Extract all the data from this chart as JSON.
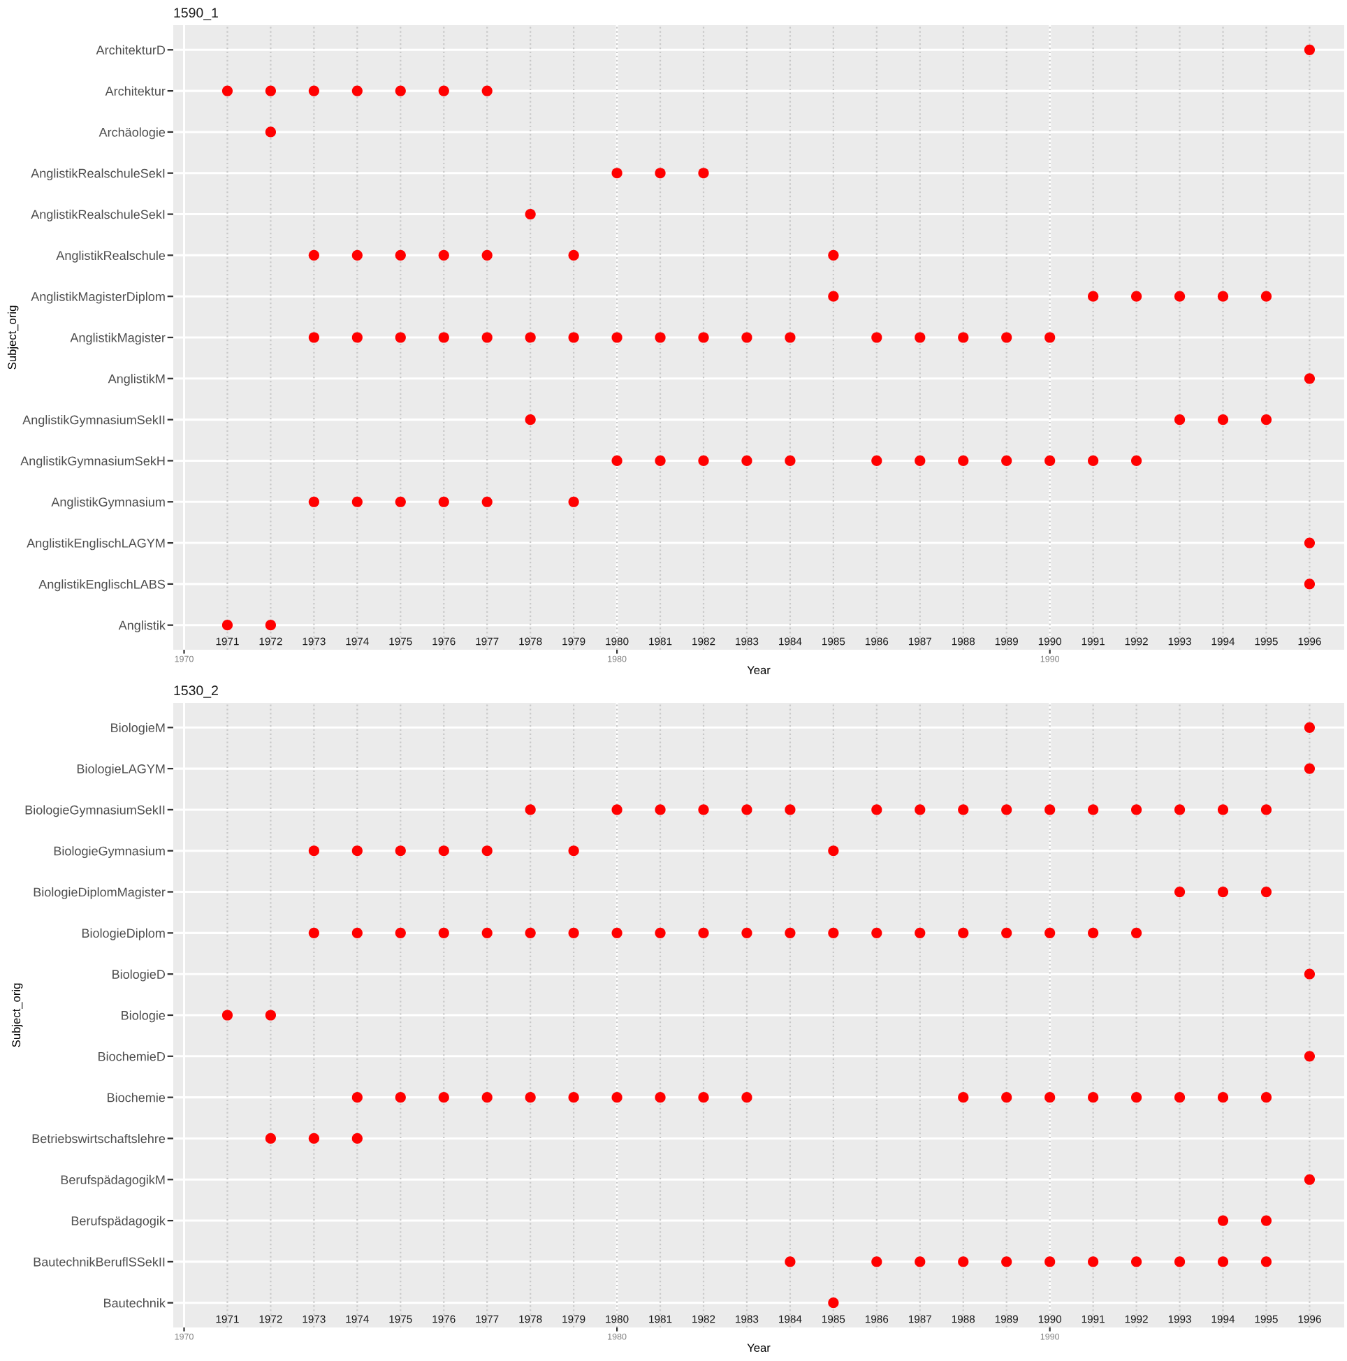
{
  "chart_data": [
    {
      "type": "scatter",
      "title": "1590_1",
      "xlabel": "Year",
      "ylabel": "Subject_orig",
      "xlim": [
        1969.75,
        1996.8
      ],
      "xticks": [
        1970,
        1980,
        1990
      ],
      "grid": true,
      "marker": "circle",
      "orientation": "horizontal",
      "legend": false,
      "categories": [
        "ArchitekturD",
        "Architektur",
        "Archäologie",
        "AnglistikRealschuleSekI",
        "AnglistikRealschuleSekI",
        "AnglistikRealschule",
        "AnglistikMagisterDiplom",
        "AnglistikMagister",
        "AnglistikM",
        "AnglistikGymnasiumSekII",
        "AnglistikGymnasiumSekH",
        "AnglistikGymnasium",
        "AnglistikEnglischLAGYM",
        "AnglistikEnglischLABS",
        "Anglistik"
      ],
      "series": [
        {
          "color": "#ff0000",
          "values": [
            null,
            1971,
            null,
            null,
            null,
            null,
            null,
            null,
            null,
            null,
            null,
            null,
            null,
            null,
            1971
          ]
        },
        {
          "color": "#ff0000",
          "values": [
            null,
            1972,
            1972,
            null,
            null,
            null,
            null,
            null,
            null,
            null,
            null,
            null,
            null,
            null,
            1972
          ]
        },
        {
          "color": "#ff0000",
          "values": [
            null,
            1973,
            null,
            null,
            null,
            1973,
            null,
            1973,
            null,
            null,
            null,
            1973,
            null,
            null,
            null
          ]
        },
        {
          "color": "#ff0000",
          "values": [
            null,
            1974,
            null,
            null,
            null,
            1974,
            null,
            1974,
            null,
            null,
            null,
            1974,
            null,
            null,
            null
          ]
        },
        {
          "color": "#ff0000",
          "values": [
            null,
            1975,
            null,
            null,
            null,
            1975,
            null,
            1975,
            null,
            null,
            null,
            1975,
            null,
            null,
            null
          ]
        },
        {
          "color": "#ff0000",
          "values": [
            null,
            1976,
            null,
            null,
            null,
            1976,
            null,
            1976,
            null,
            null,
            null,
            1976,
            null,
            null,
            null
          ]
        },
        {
          "color": "#ff0000",
          "values": [
            null,
            1977,
            null,
            null,
            null,
            1977,
            null,
            1977,
            null,
            null,
            null,
            1977,
            null,
            null,
            null
          ]
        },
        {
          "color": "#ff0000",
          "values": [
            null,
            null,
            null,
            null,
            1978,
            null,
            null,
            1978,
            null,
            1978,
            null,
            null,
            null,
            null,
            null
          ]
        },
        {
          "color": "#ff0000",
          "values": [
            null,
            null,
            null,
            null,
            null,
            1979,
            null,
            1979,
            null,
            null,
            null,
            1979,
            null,
            null,
            null
          ]
        },
        {
          "color": "#ff0000",
          "values": [
            null,
            null,
            null,
            1980,
            null,
            null,
            null,
            1980,
            null,
            null,
            1980,
            null,
            null,
            null,
            null
          ]
        },
        {
          "color": "#ff0000",
          "values": [
            null,
            null,
            null,
            1981,
            null,
            null,
            null,
            1981,
            null,
            null,
            1981,
            null,
            null,
            null,
            null
          ]
        },
        {
          "color": "#ff0000",
          "values": [
            null,
            null,
            null,
            1982,
            null,
            null,
            null,
            1982,
            null,
            null,
            1982,
            null,
            null,
            null,
            null
          ]
        },
        {
          "color": "#ff0000",
          "values": [
            null,
            null,
            null,
            null,
            null,
            null,
            null,
            1983,
            null,
            null,
            1983,
            null,
            null,
            null,
            null
          ]
        },
        {
          "color": "#ff0000",
          "values": [
            null,
            null,
            null,
            null,
            null,
            null,
            null,
            1984,
            null,
            null,
            1984,
            null,
            null,
            null,
            null
          ]
        },
        {
          "color": "#ff0000",
          "values": [
            null,
            null,
            null,
            null,
            null,
            1985,
            1985,
            null,
            null,
            null,
            null,
            null,
            null,
            null,
            null
          ]
        },
        {
          "color": "#ff0000",
          "values": [
            null,
            null,
            null,
            null,
            null,
            null,
            null,
            1986,
            null,
            null,
            1986,
            null,
            null,
            null,
            null
          ]
        },
        {
          "color": "#ff0000",
          "values": [
            null,
            null,
            null,
            null,
            null,
            null,
            null,
            1987,
            null,
            null,
            1987,
            null,
            null,
            null,
            null
          ]
        },
        {
          "color": "#ff0000",
          "values": [
            null,
            null,
            null,
            null,
            null,
            null,
            null,
            1988,
            null,
            null,
            1988,
            null,
            null,
            null,
            null
          ]
        },
        {
          "color": "#ff0000",
          "values": [
            null,
            null,
            null,
            null,
            null,
            null,
            null,
            1989,
            null,
            null,
            1989,
            null,
            null,
            null,
            null
          ]
        },
        {
          "color": "#ff0000",
          "values": [
            null,
            null,
            null,
            null,
            null,
            null,
            null,
            1990,
            null,
            null,
            1990,
            null,
            null,
            null,
            null
          ]
        },
        {
          "color": "#ff0000",
          "values": [
            null,
            null,
            null,
            null,
            null,
            null,
            1991,
            null,
            null,
            null,
            1991,
            null,
            null,
            null,
            null
          ]
        },
        {
          "color": "#ff0000",
          "values": [
            null,
            null,
            null,
            null,
            null,
            null,
            1992,
            null,
            null,
            null,
            1992,
            null,
            null,
            null,
            null
          ]
        },
        {
          "color": "#ff0000",
          "values": [
            null,
            null,
            null,
            null,
            null,
            null,
            1993,
            null,
            null,
            1993,
            null,
            null,
            null,
            null,
            null
          ]
        },
        {
          "color": "#ff0000",
          "values": [
            null,
            null,
            null,
            null,
            null,
            null,
            1994,
            null,
            null,
            1994,
            null,
            null,
            null,
            null,
            null
          ]
        },
        {
          "color": "#ff0000",
          "values": [
            null,
            null,
            null,
            null,
            null,
            null,
            1995,
            null,
            null,
            1995,
            null,
            null,
            null,
            null,
            null
          ]
        },
        {
          "color": "#ff0000",
          "values": [
            1996,
            null,
            null,
            null,
            null,
            null,
            null,
            null,
            1996,
            null,
            null,
            null,
            1996,
            1996,
            null
          ]
        }
      ],
      "ref_lines": [
        {
          "axis": "x",
          "value": 1971,
          "label": "1971",
          "line_style": "dotted",
          "color": "#c8c8c8"
        },
        {
          "axis": "x",
          "value": 1972,
          "label": "1972",
          "line_style": "dotted",
          "color": "#c8c8c8"
        },
        {
          "axis": "x",
          "value": 1973,
          "label": "1973",
          "line_style": "dotted",
          "color": "#c8c8c8"
        },
        {
          "axis": "x",
          "value": 1974,
          "label": "1974",
          "line_style": "dotted",
          "color": "#c8c8c8"
        },
        {
          "axis": "x",
          "value": 1975,
          "label": "1975",
          "line_style": "dotted",
          "color": "#c8c8c8"
        },
        {
          "axis": "x",
          "value": 1976,
          "label": "1976",
          "line_style": "dotted",
          "color": "#c8c8c8"
        },
        {
          "axis": "x",
          "value": 1977,
          "label": "1977",
          "line_style": "dotted",
          "color": "#c8c8c8"
        },
        {
          "axis": "x",
          "value": 1978,
          "label": "1978",
          "line_style": "dotted",
          "color": "#c8c8c8"
        },
        {
          "axis": "x",
          "value": 1979,
          "label": "1979",
          "line_style": "dotted",
          "color": "#c8c8c8"
        },
        {
          "axis": "x",
          "value": 1980,
          "label": "1980",
          "line_style": "dotted",
          "color": "#c8c8c8"
        },
        {
          "axis": "x",
          "value": 1981,
          "label": "1981",
          "line_style": "dotted",
          "color": "#c8c8c8"
        },
        {
          "axis": "x",
          "value": 1982,
          "label": "1982",
          "line_style": "dotted",
          "color": "#c8c8c8"
        },
        {
          "axis": "x",
          "value": 1983,
          "label": "1983",
          "line_style": "dotted",
          "color": "#c8c8c8"
        },
        {
          "axis": "x",
          "value": 1984,
          "label": "1984",
          "line_style": "dotted",
          "color": "#c8c8c8"
        },
        {
          "axis": "x",
          "value": 1985,
          "label": "1985",
          "line_style": "dotted",
          "color": "#c8c8c8"
        },
        {
          "axis": "x",
          "value": 1986,
          "label": "1986",
          "line_style": "dotted",
          "color": "#c8c8c8"
        },
        {
          "axis": "x",
          "value": 1987,
          "label": "1987",
          "line_style": "dotted",
          "color": "#c8c8c8"
        },
        {
          "axis": "x",
          "value": 1988,
          "label": "1988",
          "line_style": "dotted",
          "color": "#c8c8c8"
        },
        {
          "axis": "x",
          "value": 1989,
          "label": "1989",
          "line_style": "dotted",
          "color": "#c8c8c8"
        },
        {
          "axis": "x",
          "value": 1990,
          "label": "1990",
          "line_style": "dotted",
          "color": "#c8c8c8"
        },
        {
          "axis": "x",
          "value": 1991,
          "label": "1991",
          "line_style": "dotted",
          "color": "#c8c8c8"
        },
        {
          "axis": "x",
          "value": 1992,
          "label": "1992",
          "line_style": "dotted",
          "color": "#c8c8c8"
        },
        {
          "axis": "x",
          "value": 1993,
          "label": "1993",
          "line_style": "dotted",
          "color": "#c8c8c8"
        },
        {
          "axis": "x",
          "value": 1994,
          "label": "1994",
          "line_style": "dotted",
          "color": "#c8c8c8"
        },
        {
          "axis": "x",
          "value": 1995,
          "label": "1995",
          "line_style": "dotted",
          "color": "#c8c8c8"
        },
        {
          "axis": "x",
          "value": 1996,
          "label": "1996",
          "line_style": "dotted",
          "color": "#c8c8c8"
        }
      ]
    },
    {
      "type": "scatter",
      "title": "1530_2",
      "xlabel": "Year",
      "ylabel": "Subject_orig",
      "xlim": [
        1969.75,
        1996.8
      ],
      "xticks": [
        1970,
        1980,
        1990
      ],
      "grid": true,
      "marker": "circle",
      "orientation": "horizontal",
      "legend": false,
      "categories": [
        "BiologieM",
        "BiologieLAGYM",
        "BiologieGymnasiumSekII",
        "BiologieGymnasium",
        "BiologieDiplomMagister",
        "BiologieDiplom",
        "BiologieD",
        "Biologie",
        "BiochemieD",
        "Biochemie",
        "Betriebswirtschaftslehre",
        "BerufspädagogikM",
        "Berufspädagogik",
        "BautechnikBeruflSSekII",
        "Bautechnik"
      ],
      "series": [
        {
          "color": "#ff0000",
          "values": [
            null,
            null,
            null,
            null,
            null,
            null,
            null,
            1971,
            null,
            null,
            null,
            null,
            null,
            null,
            null
          ]
        },
        {
          "color": "#ff0000",
          "values": [
            null,
            null,
            null,
            null,
            null,
            null,
            null,
            1972,
            null,
            null,
            1972,
            null,
            null,
            null,
            null
          ]
        },
        {
          "color": "#ff0000",
          "values": [
            null,
            null,
            null,
            1973,
            null,
            1973,
            null,
            null,
            null,
            null,
            1973,
            null,
            null,
            null,
            null
          ]
        },
        {
          "color": "#ff0000",
          "values": [
            null,
            null,
            null,
            1974,
            null,
            1974,
            null,
            null,
            null,
            1974,
            1974,
            null,
            null,
            null,
            null
          ]
        },
        {
          "color": "#ff0000",
          "values": [
            null,
            null,
            null,
            1975,
            null,
            1975,
            null,
            null,
            null,
            1975,
            null,
            null,
            null,
            null,
            null
          ]
        },
        {
          "color": "#ff0000",
          "values": [
            null,
            null,
            null,
            1976,
            null,
            1976,
            null,
            null,
            null,
            1976,
            null,
            null,
            null,
            null,
            null
          ]
        },
        {
          "color": "#ff0000",
          "values": [
            null,
            null,
            null,
            1977,
            null,
            1977,
            null,
            null,
            null,
            1977,
            null,
            null,
            null,
            null,
            null
          ]
        },
        {
          "color": "#ff0000",
          "values": [
            null,
            null,
            1978,
            null,
            null,
            1978,
            null,
            null,
            null,
            1978,
            null,
            null,
            null,
            null,
            null
          ]
        },
        {
          "color": "#ff0000",
          "values": [
            null,
            null,
            null,
            1979,
            null,
            1979,
            null,
            null,
            null,
            1979,
            null,
            null,
            null,
            null,
            null
          ]
        },
        {
          "color": "#ff0000",
          "values": [
            null,
            null,
            1980,
            null,
            null,
            1980,
            null,
            null,
            null,
            1980,
            null,
            null,
            null,
            null,
            null
          ]
        },
        {
          "color": "#ff0000",
          "values": [
            null,
            null,
            1981,
            null,
            null,
            1981,
            null,
            null,
            null,
            1981,
            null,
            null,
            null,
            null,
            null
          ]
        },
        {
          "color": "#ff0000",
          "values": [
            null,
            null,
            1982,
            null,
            null,
            1982,
            null,
            null,
            null,
            1982,
            null,
            null,
            null,
            null,
            null
          ]
        },
        {
          "color": "#ff0000",
          "values": [
            null,
            null,
            1983,
            null,
            null,
            1983,
            null,
            null,
            null,
            1983,
            null,
            null,
            null,
            null,
            null
          ]
        },
        {
          "color": "#ff0000",
          "values": [
            null,
            null,
            1984,
            null,
            null,
            1984,
            null,
            null,
            null,
            null,
            null,
            null,
            null,
            1984,
            null
          ]
        },
        {
          "color": "#ff0000",
          "values": [
            null,
            null,
            null,
            1985,
            null,
            1985,
            null,
            null,
            null,
            null,
            null,
            null,
            null,
            null,
            1985
          ]
        },
        {
          "color": "#ff0000",
          "values": [
            null,
            null,
            1986,
            null,
            null,
            1986,
            null,
            null,
            null,
            null,
            null,
            null,
            null,
            1986,
            null
          ]
        },
        {
          "color": "#ff0000",
          "values": [
            null,
            null,
            1987,
            null,
            null,
            1987,
            null,
            null,
            null,
            null,
            null,
            null,
            null,
            1987,
            null
          ]
        },
        {
          "color": "#ff0000",
          "values": [
            null,
            null,
            1988,
            null,
            null,
            1988,
            null,
            null,
            null,
            1988,
            null,
            null,
            null,
            1988,
            null
          ]
        },
        {
          "color": "#ff0000",
          "values": [
            null,
            null,
            1989,
            null,
            null,
            1989,
            null,
            null,
            null,
            1989,
            null,
            null,
            null,
            1989,
            null
          ]
        },
        {
          "color": "#ff0000",
          "values": [
            null,
            null,
            1990,
            null,
            null,
            1990,
            null,
            null,
            null,
            1990,
            null,
            null,
            null,
            1990,
            null
          ]
        },
        {
          "color": "#ff0000",
          "values": [
            null,
            null,
            1991,
            null,
            null,
            1991,
            null,
            null,
            null,
            1991,
            null,
            null,
            null,
            1991,
            null
          ]
        },
        {
          "color": "#ff0000",
          "values": [
            null,
            null,
            1992,
            null,
            null,
            1992,
            null,
            null,
            null,
            1992,
            null,
            null,
            null,
            1992,
            null
          ]
        },
        {
          "color": "#ff0000",
          "values": [
            null,
            null,
            1993,
            null,
            1993,
            null,
            null,
            null,
            null,
            1993,
            null,
            null,
            null,
            1993,
            null
          ]
        },
        {
          "color": "#ff0000",
          "values": [
            null,
            null,
            1994,
            null,
            1994,
            null,
            null,
            null,
            null,
            1994,
            null,
            null,
            1994,
            1994,
            null
          ]
        },
        {
          "color": "#ff0000",
          "values": [
            null,
            null,
            1995,
            null,
            1995,
            null,
            null,
            null,
            null,
            1995,
            null,
            null,
            1995,
            1995,
            null
          ]
        },
        {
          "color": "#ff0000",
          "values": [
            1996,
            1996,
            null,
            null,
            null,
            null,
            1996,
            null,
            1996,
            null,
            null,
            1996,
            null,
            null,
            null
          ]
        }
      ],
      "ref_lines": [
        {
          "axis": "x",
          "value": 1971,
          "label": "1971",
          "line_style": "dotted",
          "color": "#c8c8c8"
        },
        {
          "axis": "x",
          "value": 1972,
          "label": "1972",
          "line_style": "dotted",
          "color": "#c8c8c8"
        },
        {
          "axis": "x",
          "value": 1973,
          "label": "1973",
          "line_style": "dotted",
          "color": "#c8c8c8"
        },
        {
          "axis": "x",
          "value": 1974,
          "label": "1974",
          "line_style": "dotted",
          "color": "#c8c8c8"
        },
        {
          "axis": "x",
          "value": 1975,
          "label": "1975",
          "line_style": "dotted",
          "color": "#c8c8c8"
        },
        {
          "axis": "x",
          "value": 1976,
          "label": "1976",
          "line_style": "dotted",
          "color": "#c8c8c8"
        },
        {
          "axis": "x",
          "value": 1977,
          "label": "1977",
          "line_style": "dotted",
          "color": "#c8c8c8"
        },
        {
          "axis": "x",
          "value": 1978,
          "label": "1978",
          "line_style": "dotted",
          "color": "#c8c8c8"
        },
        {
          "axis": "x",
          "value": 1979,
          "label": "1979",
          "line_style": "dotted",
          "color": "#c8c8c8"
        },
        {
          "axis": "x",
          "value": 1980,
          "label": "1980",
          "line_style": "dotted",
          "color": "#c8c8c8"
        },
        {
          "axis": "x",
          "value": 1981,
          "label": "1981",
          "line_style": "dotted",
          "color": "#c8c8c8"
        },
        {
          "axis": "x",
          "value": 1982,
          "label": "1982",
          "line_style": "dotted",
          "color": "#c8c8c8"
        },
        {
          "axis": "x",
          "value": 1983,
          "label": "1983",
          "line_style": "dotted",
          "color": "#c8c8c8"
        },
        {
          "axis": "x",
          "value": 1984,
          "label": "1984",
          "line_style": "dotted",
          "color": "#c8c8c8"
        },
        {
          "axis": "x",
          "value": 1985,
          "label": "1985",
          "line_style": "dotted",
          "color": "#c8c8c8"
        },
        {
          "axis": "x",
          "value": 1986,
          "label": "1986",
          "line_style": "dotted",
          "color": "#c8c8c8"
        },
        {
          "axis": "x",
          "value": 1987,
          "label": "1987",
          "line_style": "dotted",
          "color": "#c8c8c8"
        },
        {
          "axis": "x",
          "value": 1988,
          "label": "1988",
          "line_style": "dotted",
          "color": "#c8c8c8"
        },
        {
          "axis": "x",
          "value": 1989,
          "label": "1989",
          "line_style": "dotted",
          "color": "#c8c8c8"
        },
        {
          "axis": "x",
          "value": 1990,
          "label": "1990",
          "line_style": "dotted",
          "color": "#c8c8c8"
        },
        {
          "axis": "x",
          "value": 1991,
          "label": "1991",
          "line_style": "dotted",
          "color": "#c8c8c8"
        },
        {
          "axis": "x",
          "value": 1992,
          "label": "1992",
          "line_style": "dotted",
          "color": "#c8c8c8"
        },
        {
          "axis": "x",
          "value": 1993,
          "label": "1993",
          "line_style": "dotted",
          "color": "#c8c8c8"
        },
        {
          "axis": "x",
          "value": 1994,
          "label": "1994",
          "line_style": "dotted",
          "color": "#c8c8c8"
        },
        {
          "axis": "x",
          "value": 1995,
          "label": "1995",
          "line_style": "dotted",
          "color": "#c8c8c8"
        },
        {
          "axis": "x",
          "value": 1996,
          "label": "1996",
          "line_style": "dotted",
          "color": "#c8c8c8"
        }
      ]
    }
  ]
}
